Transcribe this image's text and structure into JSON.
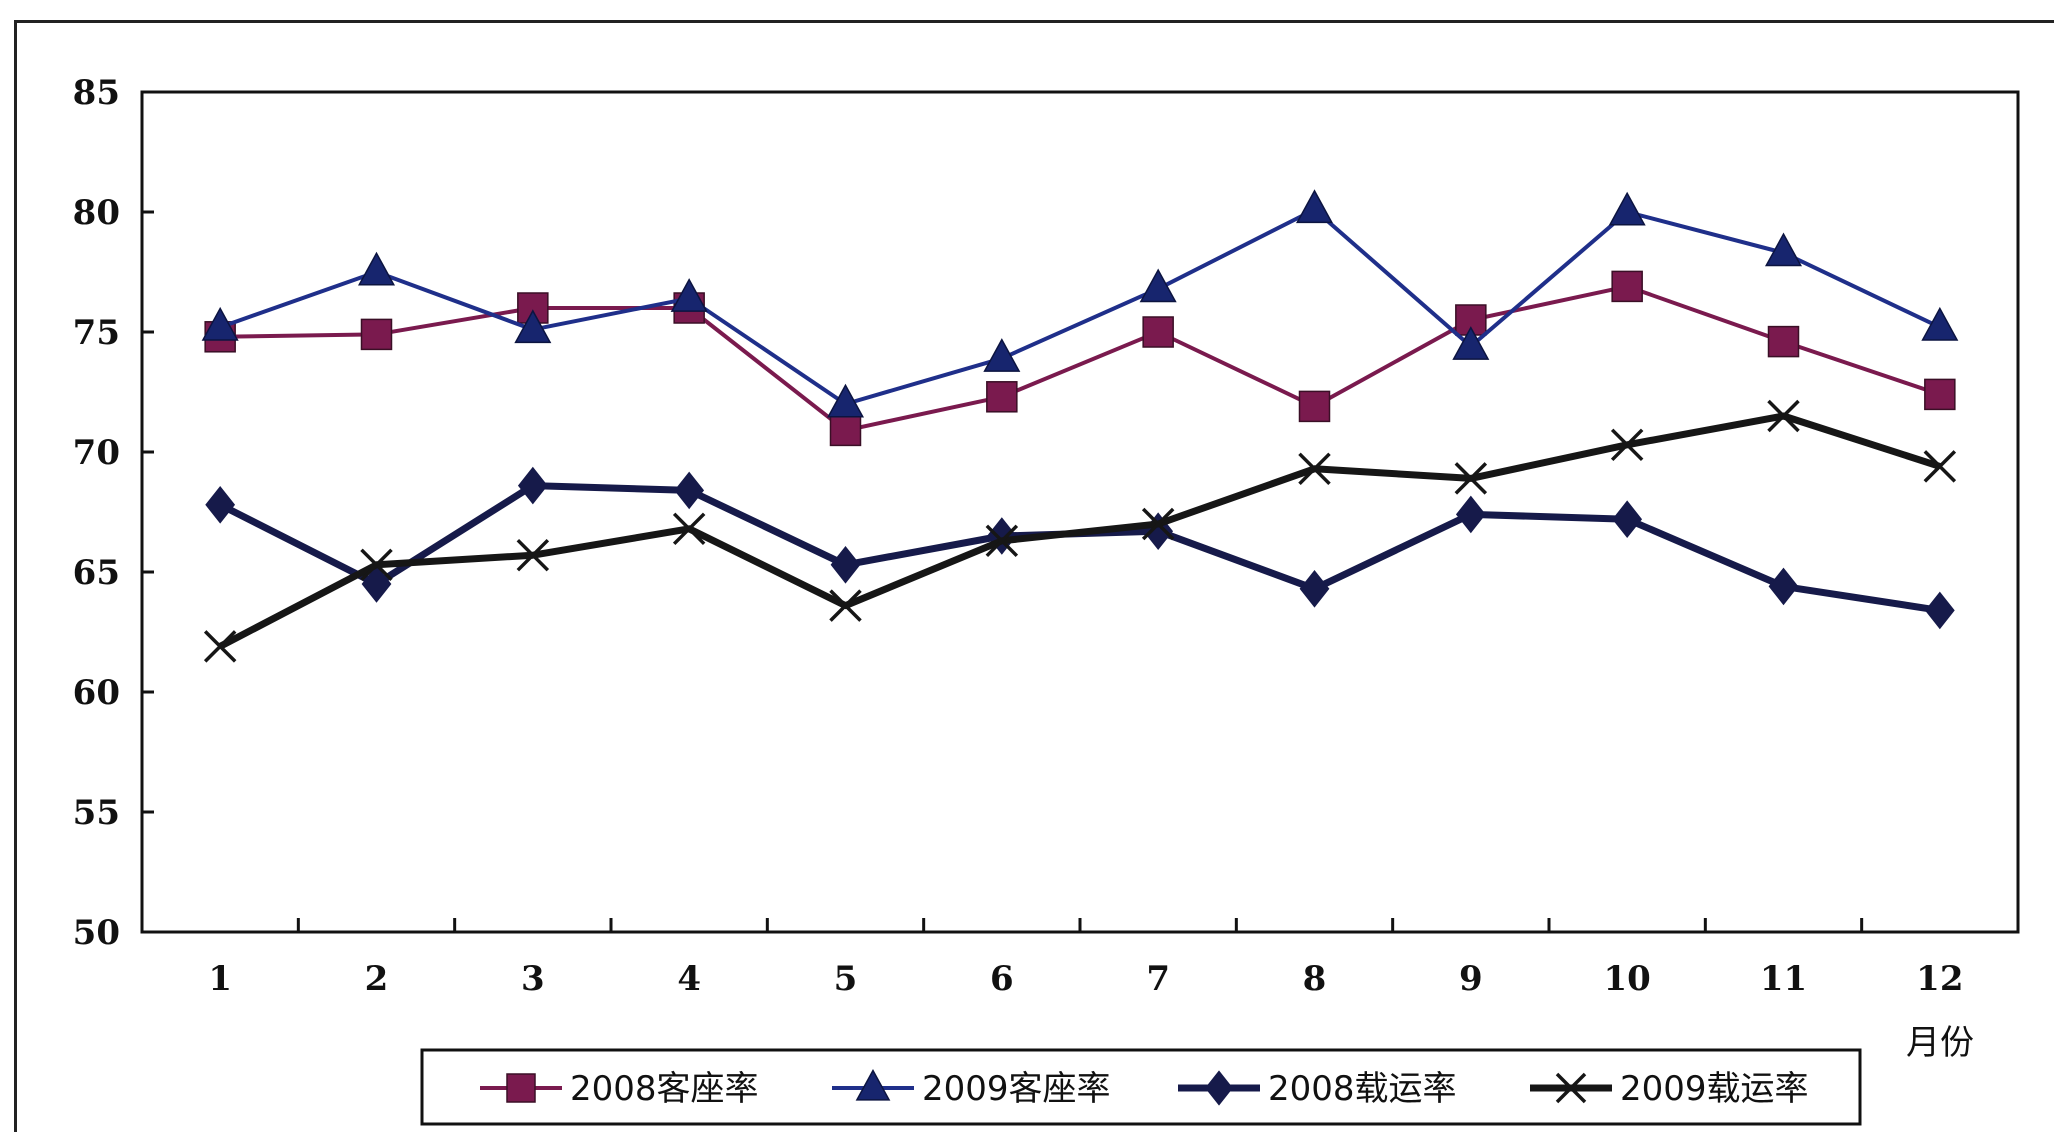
{
  "chart_data": {
    "type": "line",
    "categories": [
      "1",
      "2",
      "3",
      "4",
      "5",
      "6",
      "7",
      "8",
      "9",
      "10",
      "11",
      "12"
    ],
    "xlabel": "月份",
    "ylabel": "",
    "ylim": [
      50,
      85
    ],
    "yticks": [
      "50",
      "55",
      "60",
      "65",
      "70",
      "75",
      "80",
      "85"
    ],
    "grid": false,
    "legend_position": "bottom",
    "series": [
      {
        "name": "2008客座率",
        "color": "#7a1a4e",
        "marker": "square",
        "values": [
          74.8,
          74.9,
          76.0,
          76.0,
          70.9,
          72.3,
          75.0,
          71.9,
          75.5,
          76.9,
          74.6,
          72.4
        ]
      },
      {
        "name": "2009客座率",
        "color": "#1f2f8a",
        "marker": "triangle",
        "values": [
          75.2,
          77.5,
          75.1,
          76.4,
          72.0,
          73.9,
          76.8,
          80.1,
          74.4,
          80.0,
          78.3,
          75.2
        ]
      },
      {
        "name": "2008载运率",
        "color": "#161a4a",
        "marker": "diamond",
        "values": [
          67.8,
          64.5,
          68.6,
          68.4,
          65.3,
          66.5,
          66.7,
          64.3,
          67.4,
          67.2,
          64.4,
          63.4
        ]
      },
      {
        "name": "2009载运率",
        "color": "#161616",
        "marker": "x",
        "values": [
          61.9,
          65.3,
          65.7,
          66.8,
          63.6,
          66.3,
          67.0,
          69.3,
          68.9,
          70.3,
          71.5,
          69.4
        ]
      }
    ]
  }
}
